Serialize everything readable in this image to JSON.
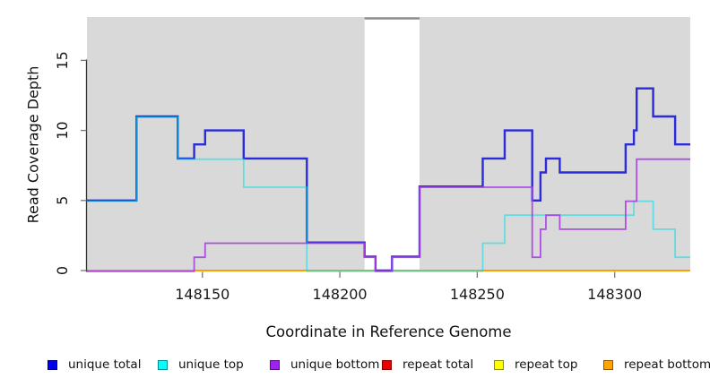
{
  "figure": {
    "background": "#FFFFFF",
    "plot_background": "#D9D9D9"
  },
  "chart_data": {
    "type": "line",
    "subtype": "step-coverage",
    "title": "",
    "xlabel": "Coordinate in Reference Genome",
    "ylabel": "Read Coverage Depth",
    "xlim": [
      148108,
      148327.5
    ],
    "ylim": [
      0,
      18.2
    ],
    "xticks": [
      148150,
      148200,
      148250,
      148300
    ],
    "yticks": [
      0,
      5,
      10,
      15
    ],
    "grid": false,
    "legend_position": "bottom",
    "plot_bg": "#D9D9D9",
    "gap_band": {
      "x0": 148209,
      "x1": 148229,
      "color": "#FFFFFF",
      "top_border_color": "#8C8C8C"
    },
    "series": [
      {
        "name": "unique total",
        "legend_color": "#0000EE",
        "line_color": "#2B2BDB",
        "opacity": 1,
        "points": [
          [
            148108,
            5
          ],
          [
            148126,
            11
          ],
          [
            148141,
            8
          ],
          [
            148147,
            9
          ],
          [
            148151,
            10
          ],
          [
            148165,
            8
          ],
          [
            148188,
            2
          ],
          [
            148209,
            1
          ],
          [
            148213,
            0
          ],
          [
            148219,
            1
          ],
          [
            148229,
            6
          ],
          [
            148252,
            8
          ],
          [
            148260,
            10
          ],
          [
            148270,
            5
          ],
          [
            148273,
            7
          ],
          [
            148275,
            8
          ],
          [
            148280,
            7
          ],
          [
            148304,
            9
          ],
          [
            148307,
            10
          ],
          [
            148308,
            13
          ],
          [
            148314,
            11
          ],
          [
            148322,
            9
          ],
          [
            148327.5,
            9
          ]
        ]
      },
      {
        "name": "unique top",
        "legend_color": "#00FFFF",
        "line_color": "#00DFE8",
        "opacity": 0.55,
        "points": [
          [
            148108,
            5
          ],
          [
            148126,
            11
          ],
          [
            148141,
            8
          ],
          [
            148165,
            6
          ],
          [
            148188,
            0
          ],
          [
            148252,
            2
          ],
          [
            148260,
            4
          ],
          [
            148307,
            5
          ],
          [
            148314,
            3
          ],
          [
            148322,
            1
          ],
          [
            148327.5,
            1
          ]
        ]
      },
      {
        "name": "unique bottom",
        "legend_color": "#A020F0",
        "line_color": "#A93FE3",
        "opacity": 0.9,
        "points": [
          [
            148108,
            0
          ],
          [
            148147,
            1
          ],
          [
            148151,
            2
          ],
          [
            148209,
            1
          ],
          [
            148213,
            0
          ],
          [
            148219,
            1
          ],
          [
            148229,
            6
          ],
          [
            148270,
            1
          ],
          [
            148273,
            3
          ],
          [
            148275,
            4
          ],
          [
            148280,
            3
          ],
          [
            148304,
            5
          ],
          [
            148308,
            8
          ],
          [
            148327.5,
            8
          ]
        ]
      },
      {
        "name": "repeat total",
        "legend_color": "#EE0000",
        "line_color": "#E00000",
        "opacity": 1,
        "points": [
          [
            148108,
            0
          ],
          [
            148327.5,
            0
          ]
        ]
      },
      {
        "name": "repeat top",
        "legend_color": "#FFFF00",
        "line_color": "#FFEB00",
        "opacity": 1,
        "points": [
          [
            148108,
            0
          ],
          [
            148327.5,
            0
          ]
        ]
      },
      {
        "name": "repeat bottom",
        "legend_color": "#FFA500",
        "line_color": "#FF9E00",
        "opacity": 1,
        "points": [
          [
            148108,
            0
          ],
          [
            148327.5,
            0
          ]
        ]
      }
    ],
    "draw_order": [
      3,
      4,
      5,
      0,
      1,
      2
    ]
  },
  "legend_items": [
    "unique total",
    "unique top",
    "unique bottom",
    "repeat total",
    "repeat top",
    "repeat bottom"
  ]
}
